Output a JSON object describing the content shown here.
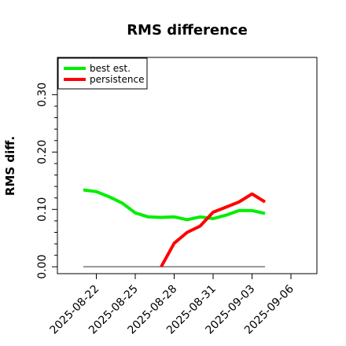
{
  "chart_data": {
    "type": "line",
    "title": "RMS difference",
    "xlabel": "",
    "ylabel": "RMS diff.",
    "xlim": [
      "2025-08-19",
      "2025-09-08"
    ],
    "ylim": [
      -0.012,
      0.365
    ],
    "x_ticks": [
      "2025-08-22",
      "2025-08-25",
      "2025-08-28",
      "2025-08-31",
      "2025-09-03",
      "2025-09-06"
    ],
    "y_ticks": [
      "0.00",
      "0.10",
      "0.20",
      "0.30"
    ],
    "y_tick_values": [
      0,
      0.1,
      0.2,
      0.3
    ],
    "y_minor_step": 0.02,
    "grid": false,
    "legend": "top-left",
    "reference_line": {
      "y": 0,
      "x": [
        "2025-08-21",
        "2025-09-04"
      ],
      "color": "#777777"
    },
    "series": [
      {
        "name": "best est.",
        "color": "#00ee00",
        "x": [
          "2025-08-21",
          "2025-08-22",
          "2025-08-23",
          "2025-08-24",
          "2025-08-25",
          "2025-08-26",
          "2025-08-27",
          "2025-08-28",
          "2025-08-29",
          "2025-08-30",
          "2025-08-31",
          "2025-09-01",
          "2025-09-02",
          "2025-09-03",
          "2025-09-04"
        ],
        "values": [
          0.134,
          0.131,
          0.122,
          0.111,
          0.094,
          0.087,
          0.086,
          0.087,
          0.082,
          0.087,
          0.084,
          0.09,
          0.098,
          0.098,
          0.093
        ]
      },
      {
        "name": "persistence",
        "color": "#ff0000",
        "x": [
          "2025-08-27",
          "2025-08-28",
          "2025-08-29",
          "2025-08-30",
          "2025-08-31",
          "2025-09-01",
          "2025-09-02",
          "2025-09-03",
          "2025-09-04"
        ],
        "values": [
          0.0,
          0.041,
          0.06,
          0.071,
          0.095,
          0.104,
          0.113,
          0.127,
          0.113
        ]
      }
    ]
  }
}
